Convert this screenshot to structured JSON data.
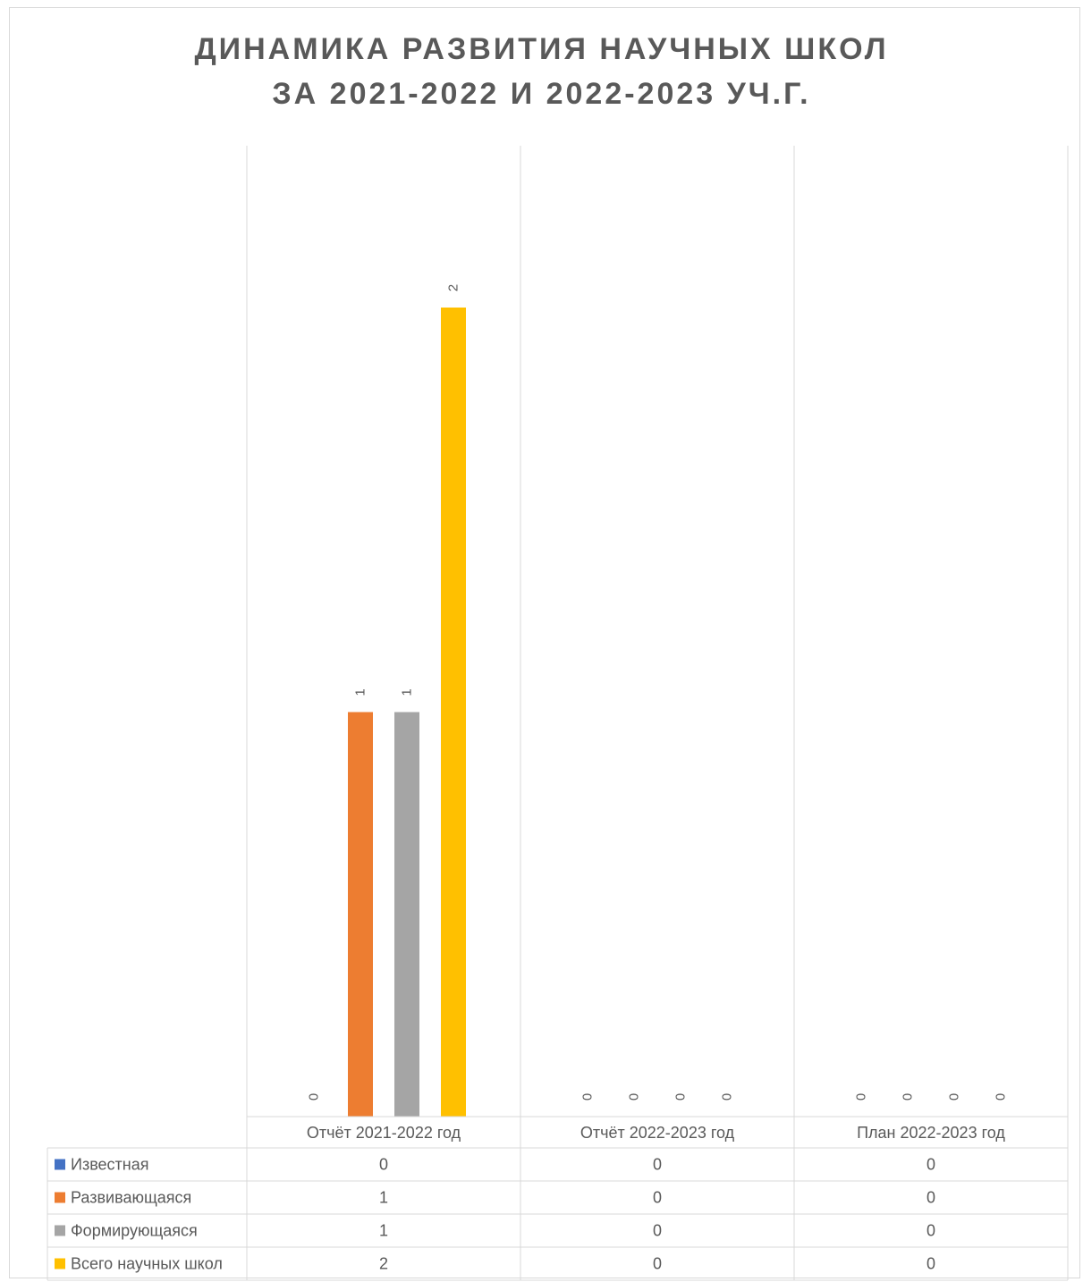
{
  "title_line1": "ДИНАМИКА РАЗВИТИЯ НАУЧНЫХ ШКОЛ",
  "title_line2": "ЗА 2021-2022 И 2022-2023 УЧ.Г.",
  "chart_data": {
    "type": "bar",
    "title": "ДИНАМИКА РАЗВИТИЯ НАУЧНЫХ ШКОЛ ЗА 2021-2022 И 2022-2023 УЧ.Г.",
    "categories": [
      "Отчёт 2021-2022 год",
      "Отчёт 2022-2023 год",
      "План 2022-2023 год"
    ],
    "series": [
      {
        "name": "Известная",
        "color": "#4472C4",
        "values": [
          0,
          0,
          0
        ]
      },
      {
        "name": "Развивающаяся",
        "color": "#ED7D31",
        "values": [
          1,
          0,
          0
        ]
      },
      {
        "name": "Формирующаяся",
        "color": "#A5A5A5",
        "values": [
          1,
          0,
          0
        ]
      },
      {
        "name": "Всего научных школ",
        "color": "#FFC000",
        "values": [
          2,
          0,
          0
        ]
      }
    ],
    "ylim": [
      0,
      2.4
    ],
    "data_labels": true,
    "data_table": true,
    "grid": "vertical category separators"
  }
}
